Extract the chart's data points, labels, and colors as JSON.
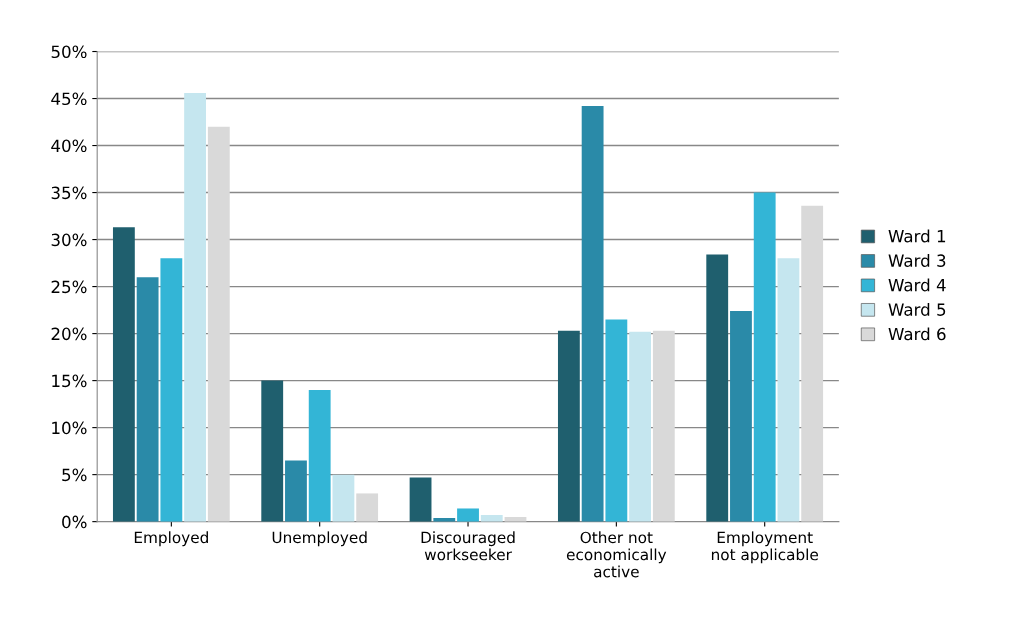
{
  "chart_data": {
    "type": "bar",
    "categories": [
      "Employed",
      "Unemployed",
      "Discouraged\nworkseeker",
      "Other not\neconomically\nactive",
      "Employment\nnot applicable"
    ],
    "series": [
      {
        "name": "Ward 1",
        "color": "#1f5f6e",
        "values": [
          31.3,
          15,
          4.7,
          20.3,
          28.4
        ]
      },
      {
        "name": "Ward 3",
        "color": "#2a8aa8",
        "values": [
          26,
          6.5,
          0.4,
          44.2,
          22.4
        ]
      },
      {
        "name": "Ward 4",
        "color": "#33b5d6",
        "values": [
          28,
          14,
          1.4,
          21.5,
          35
        ]
      },
      {
        "name": "Ward 5",
        "color": "#c5e6ef",
        "values": [
          45.6,
          5,
          0.7,
          20.2,
          28
        ]
      },
      {
        "name": "Ward 6",
        "color": "#d9d9d9",
        "values": [
          42,
          3,
          0.5,
          20.3,
          33.6
        ]
      }
    ],
    "ylim": [
      0,
      50
    ],
    "yticks": [
      {
        "value": 0,
        "label": "0%"
      },
      {
        "value": 5,
        "label": "5%"
      },
      {
        "value": 10,
        "label": "10%"
      },
      {
        "value": 15,
        "label": "15%"
      },
      {
        "value": 20,
        "label": "20%"
      },
      {
        "value": 25,
        "label": "25%"
      },
      {
        "value": 30,
        "label": "30%"
      },
      {
        "value": 35,
        "label": "35%"
      },
      {
        "value": 40,
        "label": "40%"
      },
      {
        "value": 45,
        "label": "45%"
      },
      {
        "value": 50,
        "label": "50%"
      }
    ],
    "grid": "y",
    "legend": "right"
  }
}
